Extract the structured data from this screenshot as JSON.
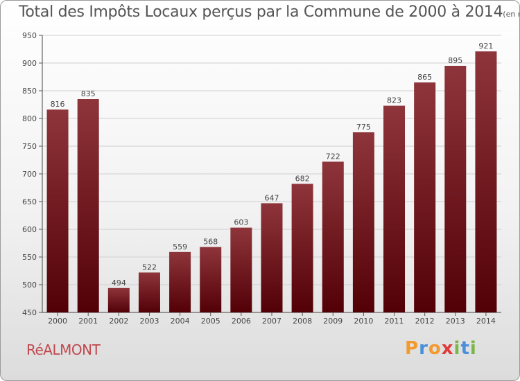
{
  "chart_data": {
    "type": "bar",
    "title": "Total des Impôts Locaux perçus par la Commune de 2000 à 2014",
    "unit_label": "(en milliers d'€)",
    "categories": [
      "2000",
      "2001",
      "2002",
      "2003",
      "2004",
      "2005",
      "2006",
      "2007",
      "2008",
      "2009",
      "2010",
      "2011",
      "2012",
      "2013",
      "2014"
    ],
    "values": [
      816,
      835,
      494,
      522,
      559,
      568,
      603,
      647,
      682,
      722,
      775,
      823,
      865,
      895,
      921
    ],
    "ylim": [
      450,
      950
    ],
    "yticks": [
      450,
      500,
      550,
      600,
      650,
      700,
      750,
      800,
      850,
      900,
      950
    ],
    "xlabel": "",
    "ylabel": "",
    "grid": true,
    "bar_color_top": "#8e353b",
    "bar_color_bottom": "#520006"
  },
  "commune": "RéALMONT",
  "logo": {
    "letters": [
      "P",
      "r",
      "o",
      "x",
      "i",
      "t",
      "i"
    ],
    "colors": [
      "#f39a2e",
      "#4a90d9",
      "#f39a2e",
      "#e03a3a",
      "#7ab648",
      "#4a90d9",
      "#7ab648"
    ]
  },
  "colors": {
    "title": "#555555",
    "commune": "#c0484e"
  }
}
